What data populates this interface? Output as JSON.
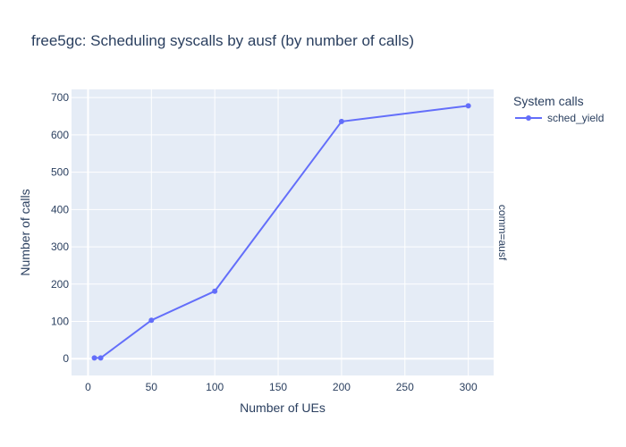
{
  "chart_data": {
    "type": "line",
    "title": "free5gc: Scheduling syscalls by ausf (by number of calls)",
    "xlabel": "Number of UEs",
    "ylabel": "Number of calls",
    "xlim": [
      -13,
      320
    ],
    "ylim": [
      -45,
      722
    ],
    "x_ticks": [
      0,
      50,
      100,
      150,
      200,
      250,
      300
    ],
    "y_ticks": [
      0,
      100,
      200,
      300,
      400,
      500,
      600,
      700
    ],
    "grid": true,
    "legend": {
      "title": "System calls",
      "placement": "top-right"
    },
    "facet_label": "comm=ausf",
    "colors": {
      "plot_bg": "#e5ecf6",
      "grid": "#ffffff",
      "series": "#636efa",
      "text": "#2a3f5f"
    },
    "series": [
      {
        "name": "sched_yield",
        "x": [
          5,
          10,
          50,
          100,
          200,
          300
        ],
        "y": [
          2,
          2,
          103,
          181,
          636,
          678
        ]
      }
    ]
  }
}
